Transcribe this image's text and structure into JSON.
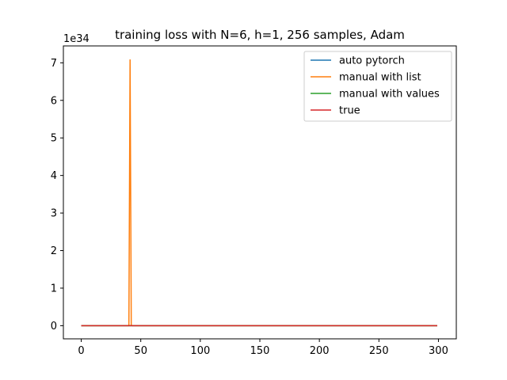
{
  "chart_data": {
    "type": "line",
    "title": "training loss with N=6, h=1, 256 samples, Adam",
    "xlabel": "",
    "ylabel": "",
    "y_offset_label": "1e34",
    "xlim": [
      -15,
      315
    ],
    "ylim": [
      -0.35,
      7.45
    ],
    "xticks": [
      0,
      50,
      100,
      150,
      200,
      250,
      300
    ],
    "xtick_labels": [
      "0",
      "50",
      "100",
      "150",
      "200",
      "250",
      "300"
    ],
    "yticks": [
      0,
      1,
      2,
      3,
      4,
      5,
      6,
      7
    ],
    "ytick_labels": [
      "0",
      "1",
      "2",
      "3",
      "4",
      "5",
      "6",
      "7"
    ],
    "grid": false,
    "legend_position": "upper-right",
    "series": [
      {
        "name": "auto pytorch",
        "color": "#1f77b4",
        "x": [
          0,
          299
        ],
        "y": [
          0,
          0
        ]
      },
      {
        "name": "manual with list",
        "color": "#ff7f0e",
        "x": [
          0,
          40,
          41,
          42,
          43,
          299
        ],
        "y": [
          0,
          0,
          7.08,
          0.01,
          0,
          0
        ]
      },
      {
        "name": "manual with values",
        "color": "#2ca02c",
        "x": [
          0,
          299
        ],
        "y": [
          0,
          0
        ]
      },
      {
        "name": "true",
        "color": "#d62728",
        "x": [
          0,
          299
        ],
        "y": [
          0,
          0
        ]
      }
    ]
  }
}
